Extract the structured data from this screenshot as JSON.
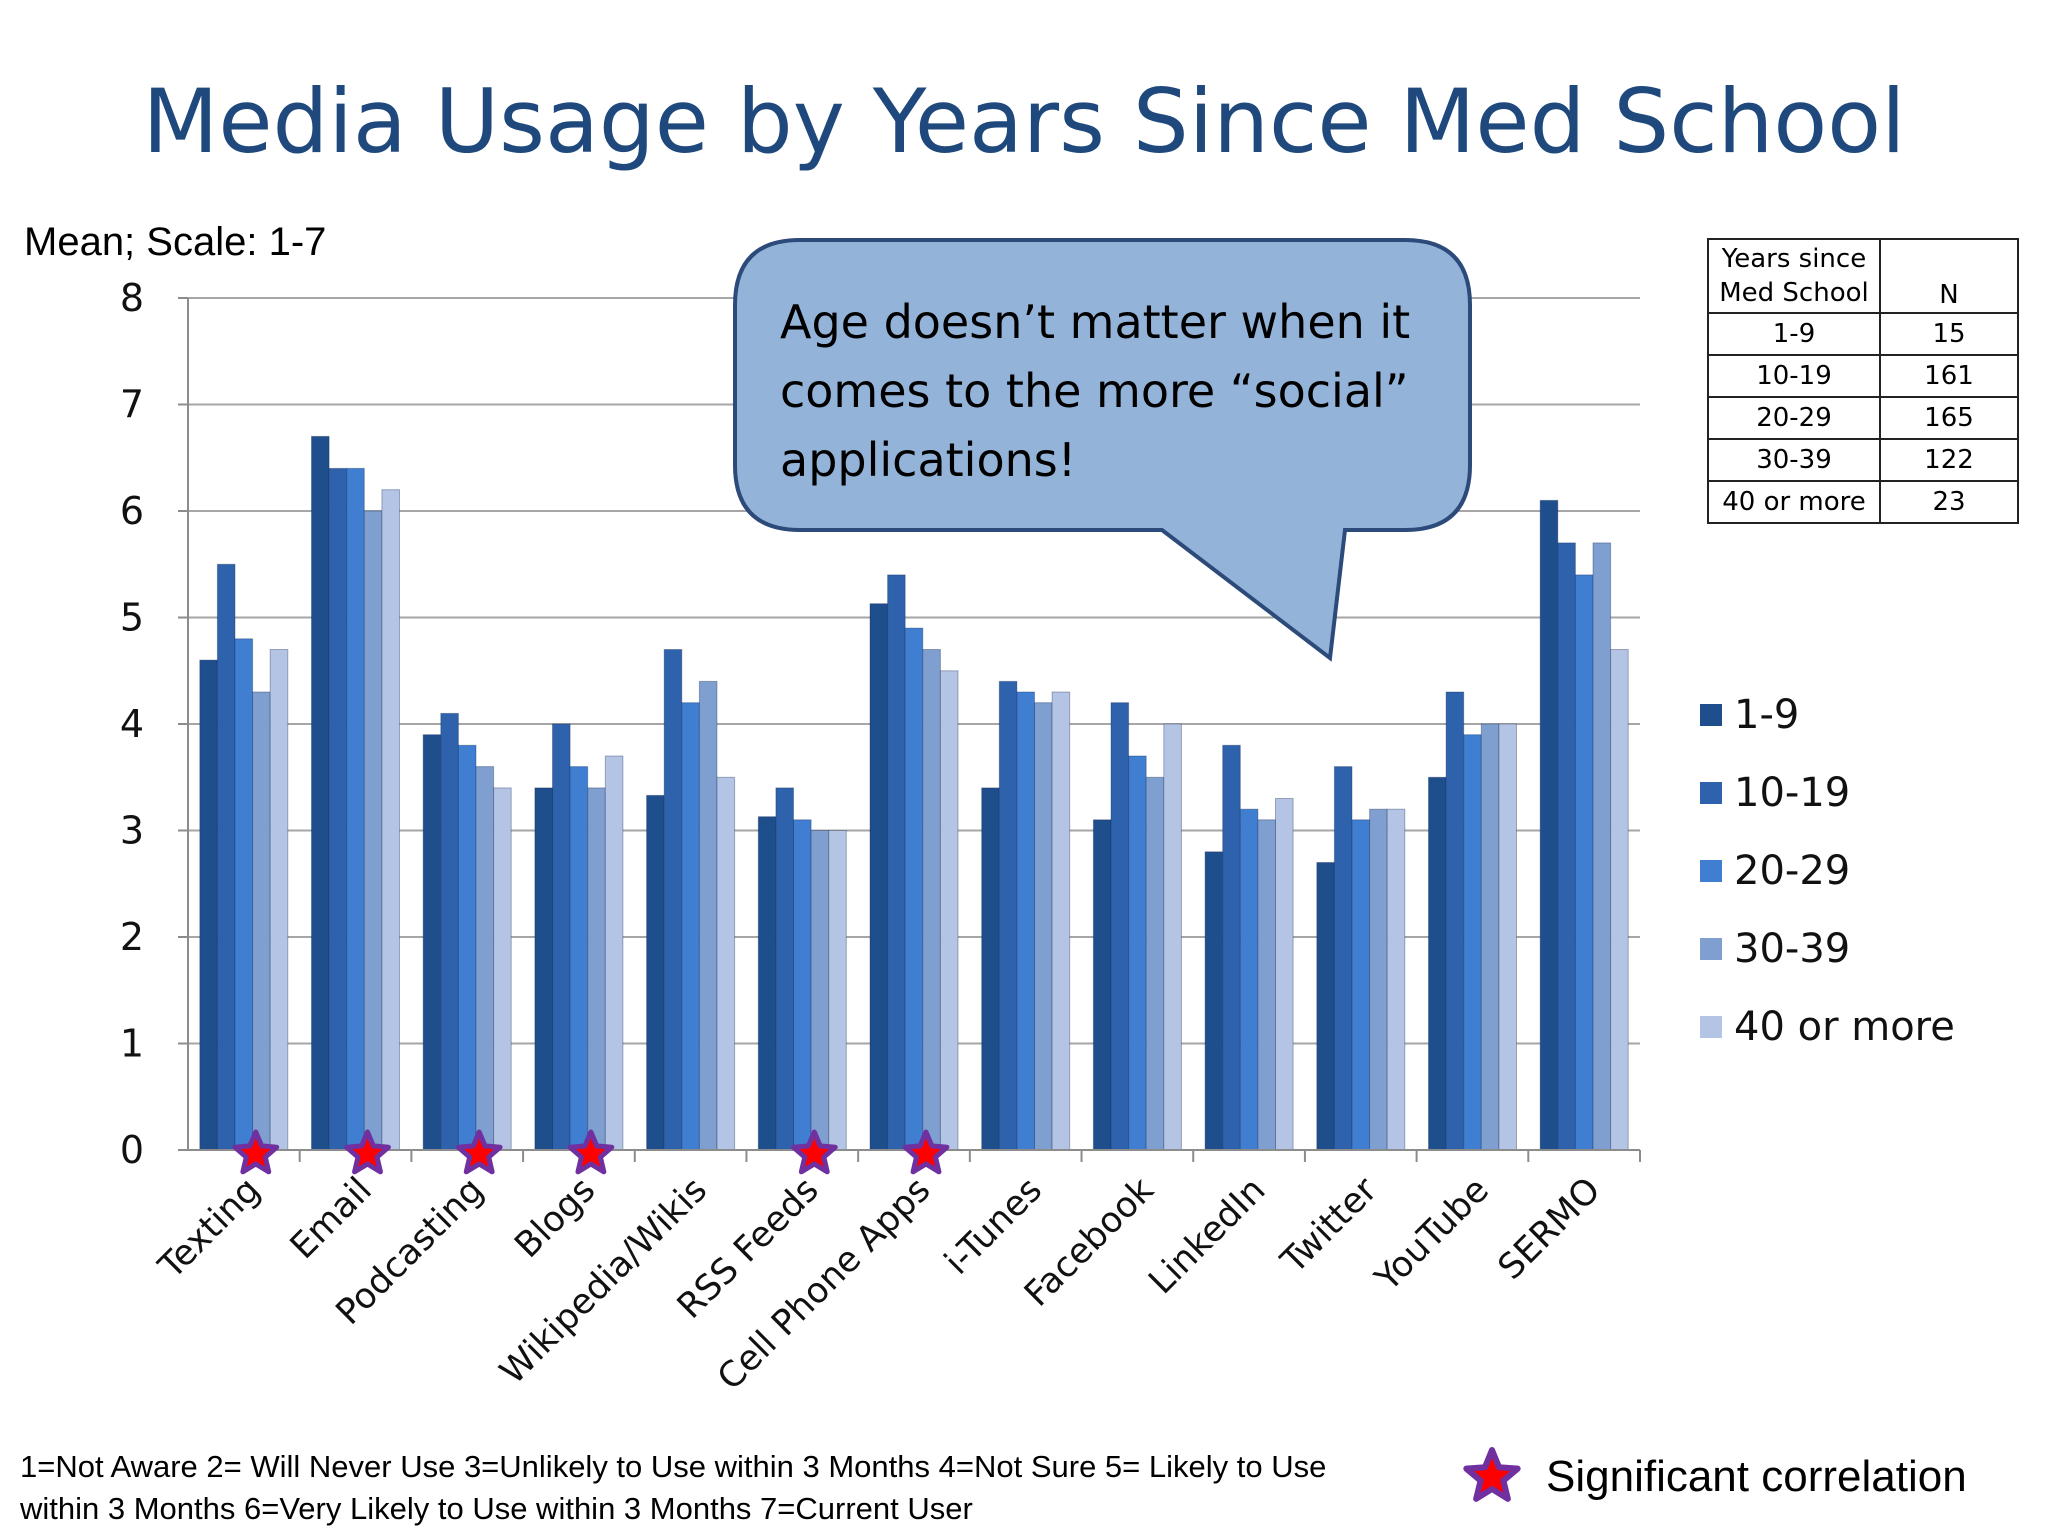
{
  "title": "Media Usage by Years Since Med School",
  "colors": {
    "title": "#1f497d",
    "star_fill": "#ff0000",
    "star_stroke": "#7030a0",
    "callout_fill": "#94b3d9",
    "callout_stroke": "#2c4a7a"
  },
  "callout": {
    "text": "Age doesn’t matter when it comes to the more “social” applications!"
  },
  "n_table": {
    "header": [
      "Years since Med School",
      "N"
    ],
    "rows": [
      [
        "1-9",
        "15"
      ],
      [
        "10-19",
        "161"
      ],
      [
        "20-29",
        "165"
      ],
      [
        "30-39",
        "122"
      ],
      [
        "40 or more",
        "23"
      ]
    ]
  },
  "footnote": "1=Not Aware  2= Will Never Use  3=Unlikely to Use within 3 Months  4=Not Sure  5= Likely to Use within 3 Months  6=Very Likely to Use within 3 Months  7=Current User",
  "significance_legend": {
    "icon": "star-icon",
    "label": "Significant correlation"
  },
  "chart_data": {
    "type": "bar",
    "ylabel": "Mean; Scale: 1-7",
    "ylim": [
      0,
      8
    ],
    "yticks": [
      "0",
      "1",
      "2",
      "3",
      "4",
      "5",
      "6",
      "7",
      "8"
    ],
    "grid": true,
    "legend_position": "right",
    "categories": [
      "Texting",
      "Email",
      "Podcasting",
      "Blogs",
      "Wikipedia/Wikis",
      "RSS Feeds",
      "Cell Phone Apps",
      "i-Tunes",
      "Facebook",
      "LinkedIn",
      "Twitter",
      "YouTube",
      "SERMO"
    ],
    "significant": [
      "Texting",
      "Email",
      "Podcasting",
      "Blogs",
      "RSS Feeds",
      "Cell Phone Apps"
    ],
    "series": [
      {
        "name": "1-9",
        "color": "#1f4e8c",
        "values": [
          4.6,
          6.7,
          3.9,
          3.4,
          3.33,
          3.13,
          5.13,
          3.4,
          3.1,
          2.8,
          2.7,
          3.5,
          6.1
        ]
      },
      {
        "name": "10-19",
        "color": "#2e62ad",
        "values": [
          5.5,
          6.4,
          4.1,
          4.0,
          4.7,
          3.4,
          5.4,
          4.4,
          4.2,
          3.8,
          3.6,
          4.3,
          5.7
        ]
      },
      {
        "name": "20-29",
        "color": "#3f7ed1",
        "values": [
          4.8,
          6.4,
          3.8,
          3.6,
          4.2,
          3.1,
          4.9,
          4.3,
          3.7,
          3.2,
          3.1,
          3.9,
          5.4
        ]
      },
      {
        "name": "30-39",
        "color": "#7f9fd0",
        "values": [
          4.3,
          6.0,
          3.6,
          3.4,
          4.4,
          3.0,
          4.7,
          4.2,
          3.5,
          3.1,
          3.2,
          4.0,
          5.7
        ]
      },
      {
        "name": "40 or more",
        "color": "#b4c4e4",
        "values": [
          4.7,
          6.2,
          3.4,
          3.7,
          3.5,
          3.0,
          4.5,
          4.3,
          4.0,
          3.3,
          3.2,
          4.0,
          4.7
        ]
      }
    ]
  }
}
